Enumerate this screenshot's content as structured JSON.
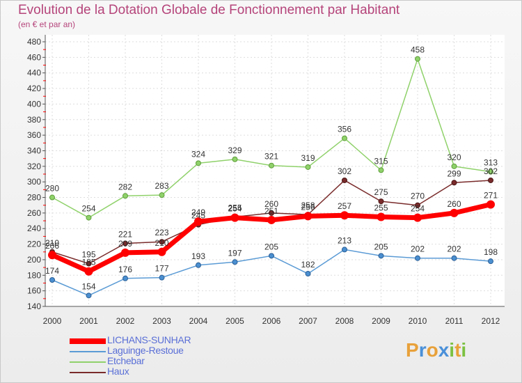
{
  "title": "Evolution de la Dotation Globale de Fonctionnement par Habitant",
  "subtitle": "(en € et par an)",
  "logo": {
    "text": "Proxiti",
    "letters": [
      {
        "ch": "P",
        "color": "#e8a13a"
      },
      {
        "ch": "r",
        "color": "#4a90d9"
      },
      {
        "ch": "o",
        "color": "#e8a13a"
      },
      {
        "ch": "x",
        "color": "#4a90d9"
      },
      {
        "ch": "i",
        "color": "#7cc142"
      },
      {
        "ch": "t",
        "color": "#e8a13a"
      },
      {
        "ch": "i",
        "color": "#7cc142"
      }
    ]
  },
  "chart_data": {
    "type": "line",
    "title": "Evolution de la Dotation Globale de Fonctionnement par Habitant",
    "ylabel": "(en € et par an)",
    "x": [
      "2000",
      "2001",
      "2002",
      "2003",
      "2004",
      "2005",
      "2006",
      "2007",
      "2008",
      "2009",
      "2010",
      "2011",
      "2012"
    ],
    "ylim": [
      140,
      480
    ],
    "yticks": [
      140,
      160,
      180,
      200,
      220,
      240,
      260,
      280,
      300,
      320,
      340,
      360,
      380,
      400,
      420,
      440,
      460,
      480
    ],
    "grid": true,
    "legend_position": "bottom-left",
    "series": [
      {
        "name": "LICHANS-SUNHAR",
        "color": "#ff0000",
        "values": [
          206,
          185,
          209,
          210,
          249,
          254,
          251,
          256,
          257,
          255,
          254,
          260,
          271
        ]
      },
      {
        "name": "Laguinge-Restoue",
        "color": "#5b9bd5",
        "values": [
          174,
          154,
          176,
          177,
          193,
          197,
          205,
          182,
          213,
          205,
          202,
          202,
          198
        ]
      },
      {
        "name": "Etchebar",
        "color": "#8fd16a",
        "values": [
          280,
          254,
          282,
          283,
          324,
          329,
          321,
          319,
          356,
          315,
          458,
          320,
          313
        ]
      },
      {
        "name": "Haux",
        "color": "#7a2b2b",
        "values": [
          210,
          195,
          221,
          223,
          245,
          255,
          260,
          258,
          302,
          275,
          270,
          299,
          302
        ]
      }
    ]
  }
}
